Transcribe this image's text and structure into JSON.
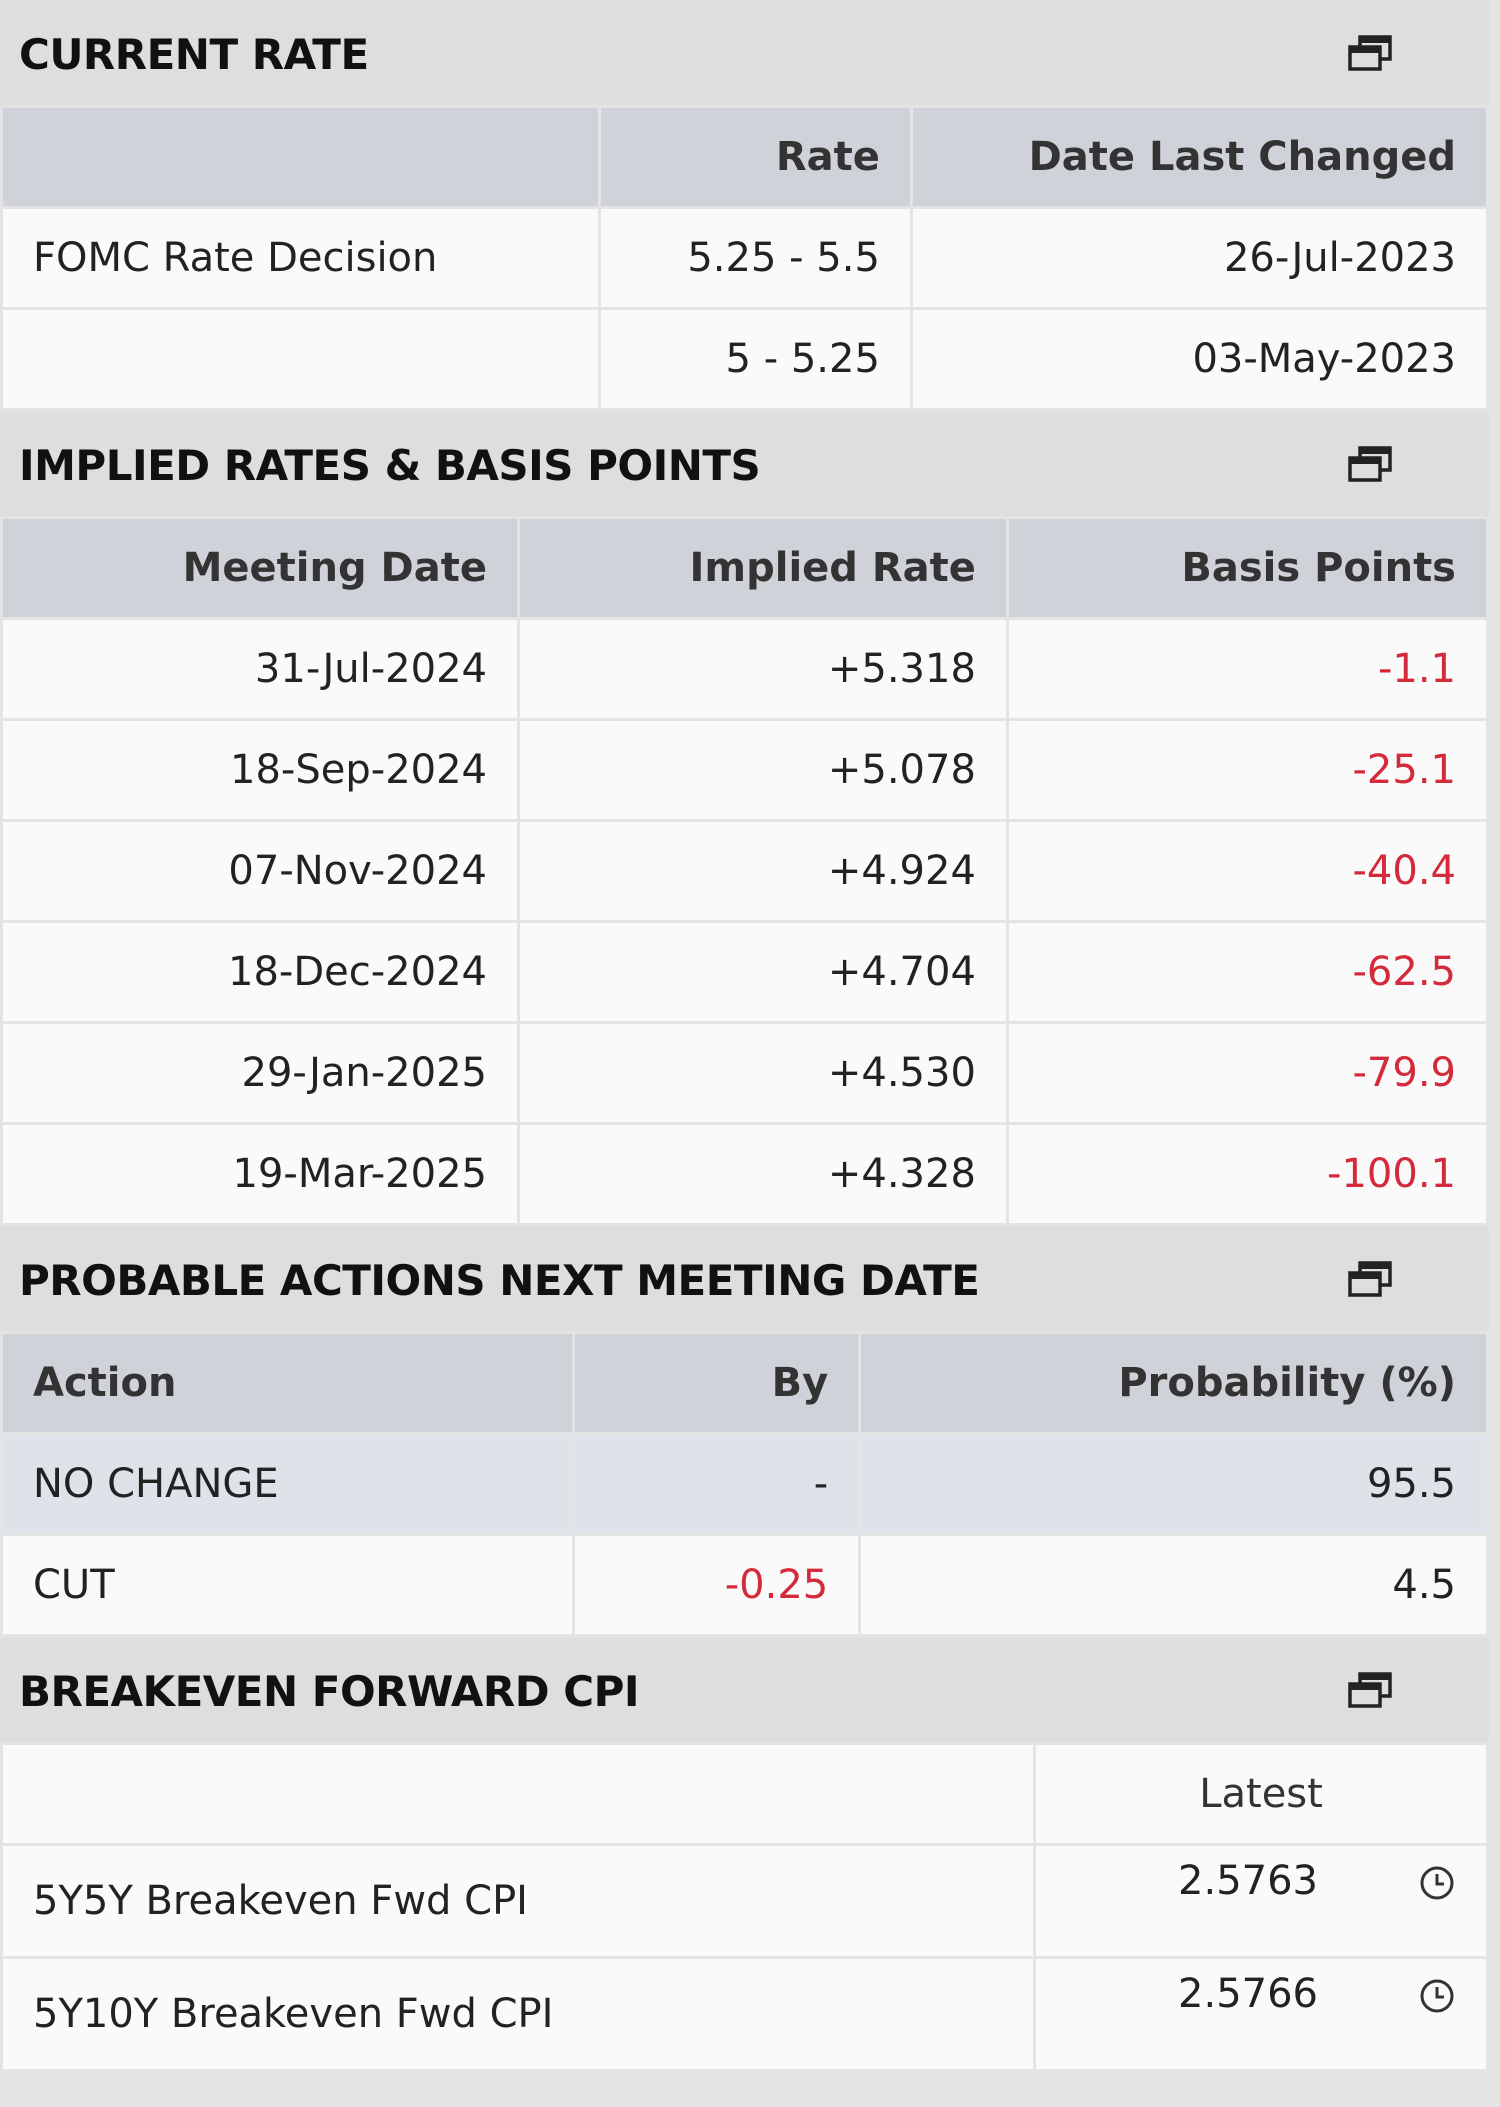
{
  "sections": [
    {
      "title": "CURRENT RATE",
      "columns": [
        null,
        "Rate",
        "Date Last Changed"
      ],
      "rows": [
        [
          "FOMC Rate Decision",
          "5.25 - 5.5",
          "26-Jul-2023"
        ],
        [
          null,
          "5 - 5.25",
          "03-May-2023"
        ]
      ]
    },
    {
      "title": "IMPLIED RATES & BASIS POINTS",
      "columns": [
        "Meeting Date",
        "Implied Rate",
        "Basis Points"
      ],
      "rows": [
        [
          "31-Jul-2024",
          "+5.318",
          "-1.1"
        ],
        [
          "18-Sep-2024",
          "+5.078",
          "-25.1"
        ],
        [
          "07-Nov-2024",
          "+4.924",
          "-40.4"
        ],
        [
          "18-Dec-2024",
          "+4.704",
          "-62.5"
        ],
        [
          "29-Jan-2025",
          "+4.530",
          "-79.9"
        ],
        [
          "19-Mar-2025",
          "+4.328",
          "-100.1"
        ]
      ]
    },
    {
      "title": "PROBABLE ACTIONS NEXT MEETING DATE",
      "columns": [
        "Action",
        "By",
        "Probability (%)"
      ],
      "rows": [
        [
          "NO CHANGE",
          "-",
          "95.5"
        ],
        [
          "CUT",
          "-0.25",
          "4.5"
        ]
      ]
    },
    {
      "title": "BREAKEVEN FORWARD CPI",
      "columns": [
        null,
        "Latest"
      ],
      "rows": [
        [
          "5Y5Y Breakeven Fwd CPI",
          "2.5763"
        ],
        [
          "5Y10Y Breakeven Fwd CPI",
          "2.5766"
        ]
      ]
    }
  ]
}
